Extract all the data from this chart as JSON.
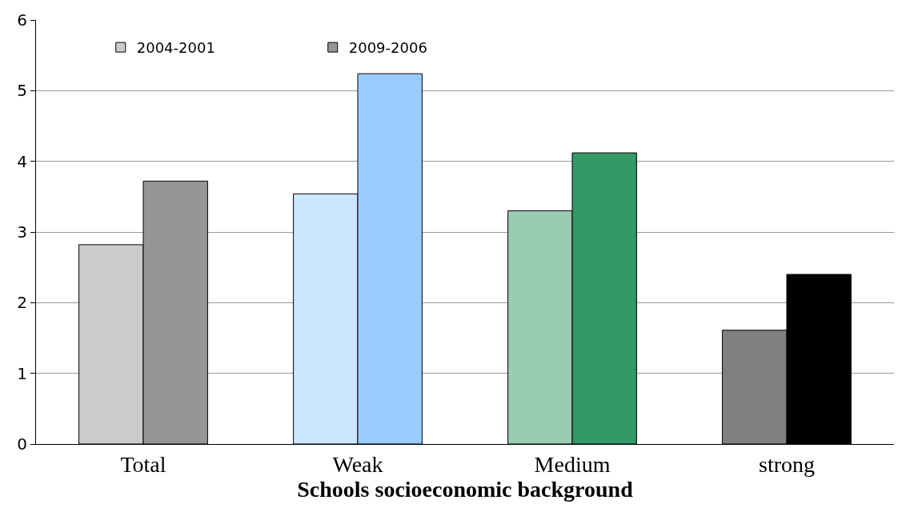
{
  "chart_data": {
    "type": "bar",
    "xlabel": "Schools socioeconomic background",
    "categories": [
      "Total",
      "Weak",
      "Medium",
      "strong"
    ],
    "series": [
      {
        "name": "2004-2001",
        "colors": [
          "#cbcbcb",
          "#cce6ff",
          "#99ccb3",
          "#808080"
        ],
        "values": [
          2.82,
          3.54,
          3.3,
          1.61
        ]
      },
      {
        "name": "2009-2006",
        "colors": [
          "#969696",
          "#99ccff",
          "#339966",
          "#000000"
        ],
        "values": [
          3.72,
          5.24,
          4.12,
          2.4
        ]
      }
    ],
    "ylim": [
      0,
      6
    ],
    "yticks": [
      0,
      1,
      2,
      3,
      4,
      5,
      6
    ],
    "grid": "y",
    "legend": "top left"
  }
}
